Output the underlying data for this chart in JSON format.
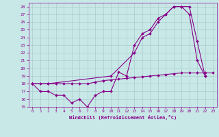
{
  "xlabel": "Windchill (Refroidissement éolien,°C)",
  "xlim": [
    -0.5,
    23.5
  ],
  "ylim": [
    15,
    28.5
  ],
  "xticks": [
    0,
    1,
    2,
    3,
    4,
    5,
    6,
    7,
    8,
    9,
    10,
    11,
    12,
    13,
    14,
    15,
    16,
    17,
    18,
    19,
    20,
    21,
    22,
    23
  ],
  "yticks": [
    15,
    16,
    17,
    18,
    19,
    20,
    21,
    22,
    23,
    24,
    25,
    26,
    27,
    28
  ],
  "bg_color": "#c8e8e8",
  "line_color": "#880088",
  "grid_color": "#aacccc",
  "series1_x": [
    0,
    1,
    2,
    3,
    4,
    5,
    6,
    7,
    8,
    9,
    10,
    11,
    12,
    13,
    14,
    15,
    16,
    17,
    18,
    19,
    20,
    21,
    22,
    23
  ],
  "series1_y": [
    18,
    18,
    18,
    18,
    18,
    18,
    18,
    18,
    18.2,
    18.4,
    18.5,
    18.6,
    18.7,
    18.8,
    18.9,
    19.0,
    19.1,
    19.2,
    19.3,
    19.4,
    19.4,
    19.4,
    19.4,
    19.4
  ],
  "series2_x": [
    0,
    1,
    2,
    3,
    4,
    5,
    6,
    7,
    8,
    9,
    10,
    11,
    12,
    13,
    14,
    15,
    16,
    17,
    18,
    19,
    20,
    21,
    22
  ],
  "series2_y": [
    18,
    17,
    17,
    16.5,
    16.5,
    15.5,
    16,
    15,
    16.5,
    17,
    17,
    19.5,
    19,
    23,
    24.5,
    25,
    26.5,
    27,
    28,
    28,
    27,
    21,
    19
  ],
  "series3_x": [
    0,
    2,
    10,
    13,
    14,
    15,
    16,
    17,
    18,
    19,
    20,
    21,
    22
  ],
  "series3_y": [
    18,
    18,
    19,
    22,
    24,
    24.5,
    26,
    27,
    28,
    28,
    28,
    23.5,
    19
  ]
}
